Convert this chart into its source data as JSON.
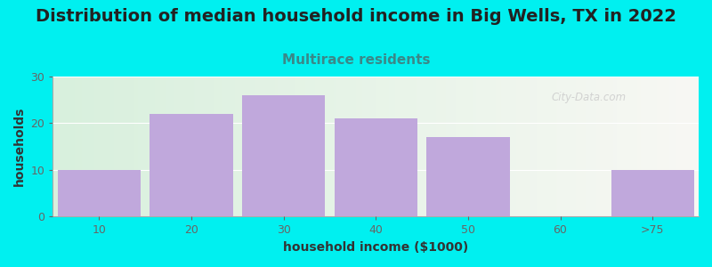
{
  "title": "Distribution of median household income in Big Wells, TX in 2022",
  "subtitle": "Multirace residents",
  "xlabel": "household income ($1000)",
  "ylabel": "households",
  "bar_labels": [
    "10",
    "20",
    "30",
    "40",
    "50",
    "60",
    ">75"
  ],
  "bar_values": [
    10,
    22,
    26,
    21,
    17,
    0,
    10
  ],
  "bar_color": "#c0a8dc",
  "bar_edgecolor": "#c0a8dc",
  "ylim": [
    0,
    30
  ],
  "yticks": [
    0,
    10,
    20,
    30
  ],
  "background_color": "#00f0f0",
  "plot_bg_left": "#d8f0dd",
  "plot_bg_right": "#f8f8f4",
  "title_fontsize": 14,
  "subtitle_fontsize": 11,
  "subtitle_color": "#3a8888",
  "axis_label_fontsize": 10,
  "tick_fontsize": 9,
  "watermark_text": "City-Data.com",
  "bar_width": 0.9
}
